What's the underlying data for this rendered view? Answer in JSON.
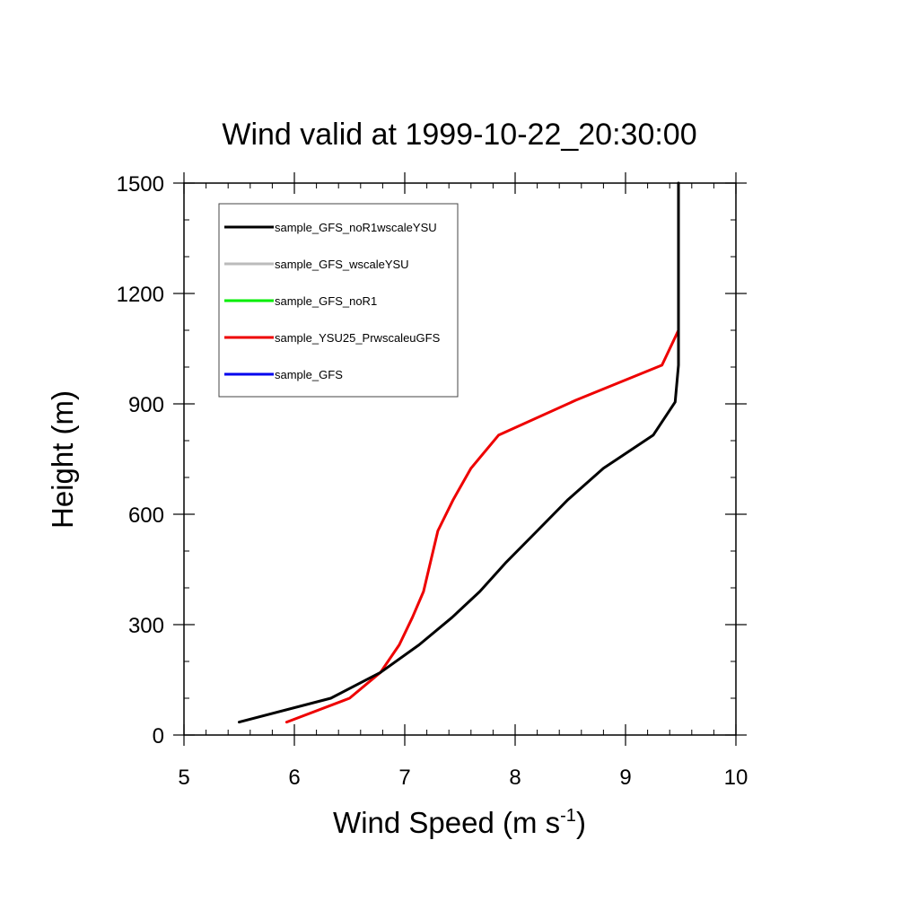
{
  "chart_data": {
    "type": "line",
    "title": "Wind valid at 1999-10-22_20:30:00",
    "xlabel": "Wind Speed (m s",
    "xlabel_superscript": "-1",
    "xlabel_suffix": ")",
    "ylabel": "Height (m)",
    "xlim": [
      5,
      10
    ],
    "ylim": [
      0,
      1500
    ],
    "x_ticks": [
      5,
      6,
      7,
      8,
      9,
      10
    ],
    "y_ticks": [
      0,
      300,
      600,
      900,
      1200,
      1500
    ],
    "grid": false,
    "legend_position": "top-left",
    "series": [
      {
        "name": "sample_GFS_noR1wscaleYSU",
        "color": "#000000",
        "x": [
          5.5,
          6.33,
          6.78,
          7.13,
          7.43,
          7.68,
          7.92,
          8.2,
          8.48,
          8.8,
          9.25,
          9.45,
          9.48,
          9.48,
          9.48
        ],
        "y": [
          35,
          100,
          170,
          245,
          320,
          390,
          470,
          555,
          640,
          725,
          815,
          905,
          1005,
          1100,
          1500
        ]
      },
      {
        "name": "sample_GFS_wscaleYSU",
        "color": "#bbbbbb",
        "x": [],
        "y": []
      },
      {
        "name": "sample_GFS_noR1",
        "color": "#00ee00",
        "x": [],
        "y": []
      },
      {
        "name": "sample_YSU25_PrwscaleuGFS",
        "color": "#ee0000",
        "x": [
          5.93,
          6.5,
          6.78,
          6.95,
          7.07,
          7.17,
          7.3,
          7.44,
          7.6,
          7.85,
          8.55,
          9.33,
          9.48
        ],
        "y": [
          35,
          100,
          170,
          245,
          320,
          390,
          555,
          640,
          725,
          815,
          910,
          1005,
          1100
        ]
      },
      {
        "name": "sample_GFS",
        "color": "#0000ee",
        "x": [],
        "y": []
      }
    ]
  }
}
